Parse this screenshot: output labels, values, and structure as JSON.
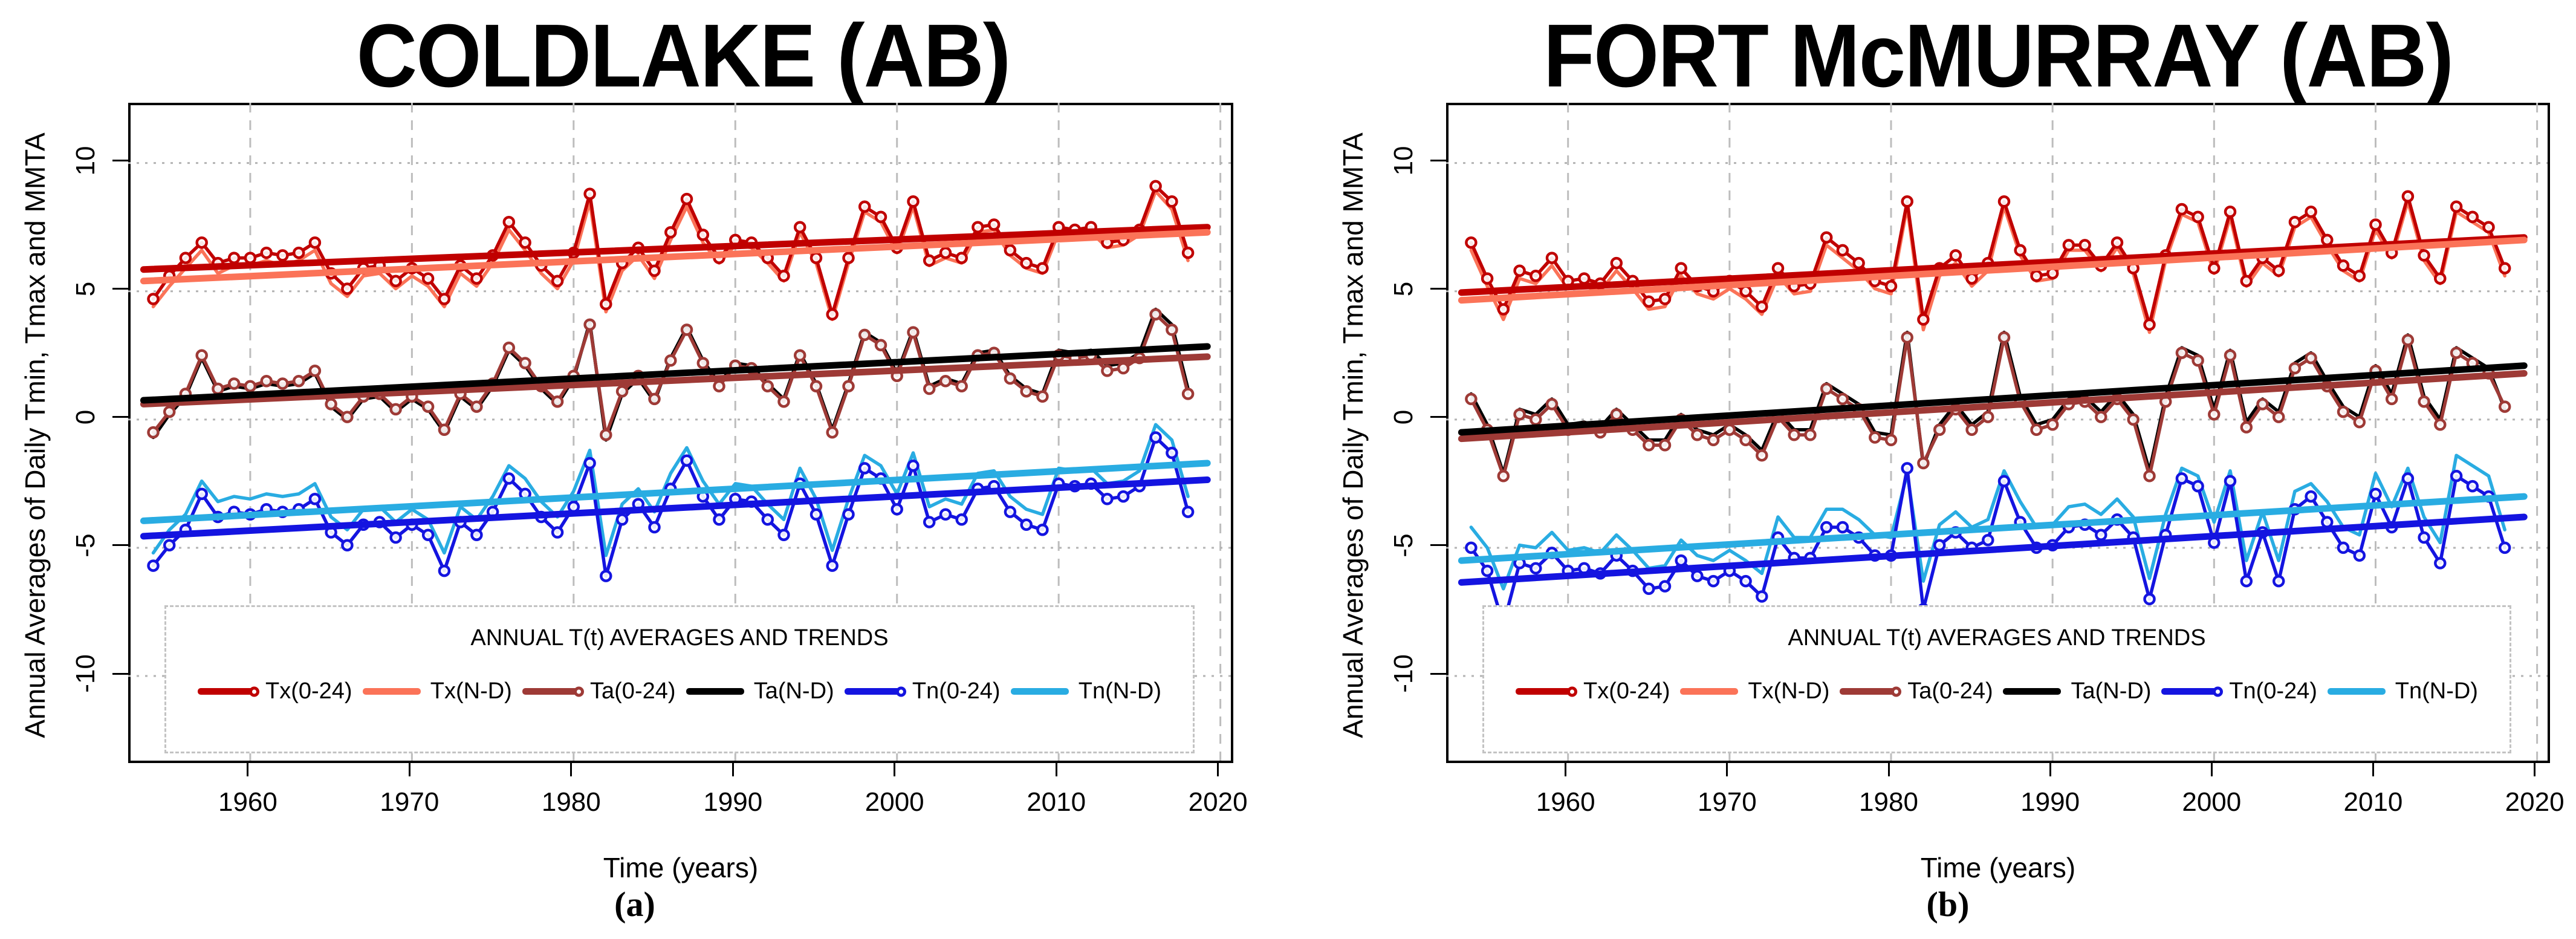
{
  "figure": {
    "ylabel": "Annual Averages of Daily Tmin, Tmax and MMTA",
    "xlabel": "Time (years)",
    "legend": {
      "title": "ANNUAL T(t) AVERAGES AND TRENDS",
      "items": [
        {
          "label": "Tx(0-24)",
          "color": "#C00000",
          "marker": true
        },
        {
          "label": "Tx(N-D)",
          "color": "#FB7358",
          "marker": false
        },
        {
          "label": "Ta(0-24)",
          "color": "#9E3A36",
          "marker": true
        },
        {
          "label": "Ta(N-D)",
          "color": "#000000",
          "marker": false
        },
        {
          "label": "Tn(0-24)",
          "color": "#1414E0",
          "marker": true
        },
        {
          "label": "Tn(N-D)",
          "color": "#29ACE2",
          "marker": false
        }
      ]
    },
    "grid_color_v": "#bdbdbd",
    "grid_color_h": "#b3b3b3"
  },
  "chart_data": [
    {
      "type": "line",
      "title": "COLDLAKE (AB)",
      "caption": "(a)",
      "xlabel": "Time (years)",
      "ylabel": "Annual Averages of Daily Tmin, Tmax and MMTA",
      "x_start": 1954,
      "xlim": [
        1952.45,
        2020.65
      ],
      "ylim": [
        -13.3,
        12.35
      ],
      "xticks": [
        1960,
        1970,
        1980,
        1990,
        2000,
        2010,
        2020
      ],
      "yticks": [
        -10,
        -5,
        0,
        5,
        10
      ],
      "grid": true,
      "legend_position": "bottom-center",
      "series": [
        {
          "name": "Tx(0-24)",
          "color": "#C00000",
          "marker": true,
          "values": [
            4.7,
            5.6,
            6.3,
            6.9,
            6.1,
            6.3,
            6.3,
            6.5,
            6.4,
            6.5,
            6.9,
            5.7,
            5.1,
            5.9,
            6.0,
            5.4,
            5.9,
            5.5,
            4.7,
            6.0,
            5.5,
            6.4,
            7.7,
            6.9,
            6.0,
            5.4,
            6.5,
            8.8,
            4.5,
            6.1,
            6.7,
            5.8,
            7.3,
            8.6,
            7.2,
            6.3,
            7.0,
            6.9,
            6.3,
            5.6,
            7.5,
            6.3,
            4.1,
            6.3,
            8.3,
            7.9,
            6.7,
            8.5,
            6.2,
            6.5,
            6.3,
            7.5,
            7.6,
            6.6,
            6.1,
            5.9,
            7.5,
            7.4,
            7.5,
            6.9,
            7.0,
            7.4,
            9.1,
            8.5,
            6.5
          ],
          "trend": [
            5.85,
            7.5
          ]
        },
        {
          "name": "Tx(N-D)",
          "color": "#FB7358",
          "marker": false,
          "values": [
            4.4,
            5.2,
            5.9,
            6.6,
            5.7,
            6.0,
            6.0,
            6.2,
            6.0,
            6.2,
            6.6,
            5.3,
            4.8,
            5.6,
            5.7,
            5.1,
            5.6,
            5.2,
            4.4,
            5.7,
            5.2,
            6.1,
            7.4,
            6.6,
            5.7,
            5.1,
            6.2,
            8.5,
            4.2,
            5.8,
            6.4,
            5.5,
            7.0,
            8.3,
            6.9,
            6.1,
            6.8,
            6.7,
            6.1,
            5.4,
            7.3,
            6.1,
            3.9,
            6.1,
            8.1,
            7.7,
            6.5,
            8.3,
            6.0,
            6.3,
            6.1,
            7.3,
            7.4,
            6.4,
            5.9,
            5.7,
            7.3,
            7.2,
            7.3,
            6.7,
            6.8,
            7.2,
            8.9,
            8.2,
            6.2
          ],
          "trend": [
            5.4,
            7.3
          ]
        },
        {
          "name": "Ta(0-24)",
          "color": "#9E3A36",
          "marker": true,
          "values": [
            -0.5,
            0.3,
            1.0,
            2.5,
            1.2,
            1.4,
            1.3,
            1.5,
            1.4,
            1.5,
            1.9,
            0.6,
            0.1,
            0.9,
            1.0,
            0.4,
            0.9,
            0.5,
            -0.4,
            1.0,
            0.5,
            1.4,
            2.8,
            2.2,
            1.3,
            0.7,
            1.7,
            3.7,
            -0.6,
            1.1,
            1.7,
            0.8,
            2.3,
            3.5,
            2.2,
            1.3,
            2.1,
            2.0,
            1.3,
            0.7,
            2.5,
            1.3,
            -0.5,
            1.3,
            3.3,
            2.9,
            1.7,
            3.4,
            1.2,
            1.5,
            1.3,
            2.5,
            2.6,
            1.6,
            1.1,
            0.9,
            2.5,
            2.4,
            2.5,
            1.9,
            2.0,
            2.4,
            4.1,
            3.5,
            1.0
          ],
          "trend": [
            0.6,
            2.45
          ]
        },
        {
          "name": "Ta(N-D)",
          "color": "#000000",
          "marker": false,
          "values": [
            -0.7,
            0.2,
            0.9,
            2.4,
            1.1,
            1.3,
            1.2,
            1.4,
            1.3,
            1.4,
            1.8,
            0.5,
            0.0,
            0.8,
            0.9,
            0.3,
            0.8,
            0.4,
            -0.5,
            0.9,
            0.4,
            1.3,
            2.7,
            2.1,
            1.2,
            0.6,
            1.6,
            3.8,
            -0.8,
            1.0,
            1.6,
            0.7,
            2.4,
            3.6,
            2.3,
            1.4,
            2.2,
            2.1,
            1.4,
            0.8,
            2.6,
            1.4,
            -0.4,
            1.4,
            3.4,
            3.0,
            1.8,
            3.5,
            1.3,
            1.6,
            1.4,
            2.6,
            2.7,
            1.7,
            1.2,
            1.0,
            2.7,
            2.6,
            2.7,
            2.1,
            2.2,
            2.6,
            4.3,
            3.7,
            1.2
          ],
          "trend": [
            0.75,
            2.85
          ]
        },
        {
          "name": "Tn(0-24)",
          "color": "#1414E0",
          "marker": true,
          "values": [
            -5.7,
            -4.9,
            -4.3,
            -2.9,
            -3.8,
            -3.6,
            -3.7,
            -3.5,
            -3.6,
            -3.5,
            -3.1,
            -4.4,
            -4.9,
            -4.1,
            -4.0,
            -4.6,
            -4.1,
            -4.5,
            -5.9,
            -4.0,
            -4.5,
            -3.6,
            -2.3,
            -2.9,
            -3.8,
            -4.4,
            -3.4,
            -1.7,
            -6.1,
            -3.9,
            -3.3,
            -4.2,
            -2.7,
            -1.6,
            -3.0,
            -3.9,
            -3.1,
            -3.2,
            -3.9,
            -4.5,
            -2.5,
            -3.7,
            -5.7,
            -3.7,
            -1.9,
            -2.3,
            -3.5,
            -1.8,
            -4.0,
            -3.7,
            -3.9,
            -2.7,
            -2.6,
            -3.6,
            -4.1,
            -4.3,
            -2.5,
            -2.6,
            -2.5,
            -3.1,
            -3.0,
            -2.6,
            -0.7,
            -1.3,
            -3.6
          ],
          "trend": [
            -4.55,
            -2.35
          ]
        },
        {
          "name": "Tn(N-D)",
          "color": "#29ACE2",
          "marker": false,
          "values": [
            -5.2,
            -4.3,
            -3.7,
            -2.4,
            -3.2,
            -3.0,
            -3.1,
            -2.9,
            -3.0,
            -2.9,
            -2.5,
            -3.8,
            -4.3,
            -3.5,
            -3.4,
            -4.0,
            -3.5,
            -3.9,
            -5.2,
            -3.4,
            -3.9,
            -3.0,
            -1.8,
            -2.3,
            -3.2,
            -3.8,
            -2.8,
            -1.2,
            -5.3,
            -3.3,
            -2.7,
            -3.6,
            -2.1,
            -1.1,
            -2.4,
            -3.3,
            -2.5,
            -2.6,
            -3.3,
            -3.9,
            -1.9,
            -3.1,
            -5.1,
            -3.1,
            -1.4,
            -1.8,
            -2.9,
            -1.3,
            -3.4,
            -3.1,
            -3.3,
            -2.1,
            -2.0,
            -3.0,
            -3.5,
            -3.7,
            -1.9,
            -2.0,
            -1.9,
            -2.5,
            -2.4,
            -2.0,
            -0.2,
            -0.8,
            -3.0
          ],
          "trend": [
            -3.95,
            -1.7
          ]
        }
      ]
    },
    {
      "type": "line",
      "title": "FORT McMURRAY (AB)",
      "caption": "(b)",
      "xlabel": "Time (years)",
      "ylabel": "Annual Averages of Daily Tmin, Tmax and MMTA",
      "x_start": 1954,
      "xlim": [
        1952.45,
        2020.65
      ],
      "ylim": [
        -13.3,
        12.35
      ],
      "xticks": [
        1960,
        1970,
        1980,
        1990,
        2000,
        2010,
        2020
      ],
      "yticks": [
        -10,
        -5,
        0,
        5,
        10
      ],
      "grid": true,
      "legend_position": "bottom-center",
      "series": [
        {
          "name": "Tx(0-24)",
          "color": "#C00000",
          "marker": true,
          "values": [
            6.9,
            5.5,
            4.3,
            5.8,
            5.6,
            6.3,
            5.4,
            5.5,
            5.3,
            6.1,
            5.4,
            4.6,
            4.7,
            5.9,
            5.2,
            5.0,
            5.4,
            5.0,
            4.4,
            5.9,
            5.2,
            5.3,
            7.1,
            6.6,
            6.1,
            5.4,
            5.2,
            8.5,
            3.9,
            5.9,
            6.4,
            5.5,
            6.1,
            8.5,
            6.6,
            5.6,
            5.7,
            6.8,
            6.8,
            6.0,
            6.9,
            5.9,
            3.7,
            6.4,
            8.2,
            7.9,
            5.9,
            8.1,
            5.4,
            6.3,
            5.8,
            7.7,
            8.1,
            7.0,
            6.0,
            5.6,
            7.6,
            6.5,
            8.7,
            6.4,
            5.5,
            8.3,
            7.9,
            7.5,
            5.9
          ],
          "trend": [
            4.95,
            7.1
          ]
        },
        {
          "name": "Tx(N-D)",
          "color": "#FB7358",
          "marker": false,
          "values": [
            6.6,
            5.2,
            3.9,
            5.5,
            5.3,
            6.0,
            5.1,
            5.2,
            5.0,
            5.8,
            5.1,
            4.3,
            4.4,
            5.6,
            4.9,
            4.7,
            5.1,
            4.7,
            4.1,
            5.6,
            4.9,
            5.0,
            6.8,
            6.3,
            5.8,
            5.1,
            4.9,
            8.3,
            3.5,
            5.6,
            6.1,
            5.2,
            5.8,
            8.3,
            6.4,
            5.4,
            5.5,
            6.6,
            6.6,
            5.8,
            6.7,
            5.7,
            3.4,
            6.2,
            8.0,
            7.7,
            5.7,
            7.9,
            5.2,
            6.1,
            5.6,
            7.5,
            7.9,
            6.8,
            5.8,
            5.4,
            7.4,
            6.3,
            8.5,
            6.2,
            5.3,
            8.1,
            7.7,
            7.3,
            5.6
          ],
          "trend": [
            4.65,
            7.0
          ]
        },
        {
          "name": "Ta(0-24)",
          "color": "#9E3A36",
          "marker": true,
          "values": [
            0.8,
            -0.4,
            -2.2,
            0.2,
            0.0,
            0.6,
            -0.4,
            -0.3,
            -0.5,
            0.2,
            -0.4,
            -1.0,
            -1.0,
            0.0,
            -0.6,
            -0.8,
            -0.4,
            -0.8,
            -1.4,
            0.1,
            -0.6,
            -0.6,
            1.2,
            0.8,
            0.4,
            -0.7,
            -0.8,
            3.2,
            -1.7,
            -0.4,
            0.4,
            -0.4,
            0.1,
            3.2,
            0.7,
            -0.4,
            -0.2,
            0.6,
            0.7,
            0.1,
            0.8,
            0.0,
            -2.2,
            0.7,
            2.6,
            2.3,
            0.2,
            2.5,
            -0.3,
            0.6,
            0.1,
            2.0,
            2.4,
            1.3,
            0.3,
            -0.1,
            1.9,
            0.8,
            3.1,
            0.7,
            -0.2,
            2.6,
            2.2,
            1.8,
            0.5
          ],
          "trend": [
            -0.75,
            1.8
          ]
        },
        {
          "name": "Ta(N-D)",
          "color": "#000000",
          "marker": false,
          "values": [
            1.0,
            -0.2,
            -2.1,
            0.4,
            0.2,
            0.8,
            -0.2,
            -0.1,
            -0.3,
            0.4,
            -0.2,
            -0.8,
            -0.8,
            0.2,
            -0.4,
            -0.6,
            -0.2,
            -0.6,
            -1.2,
            0.3,
            -0.4,
            -0.4,
            1.4,
            1.0,
            0.6,
            -0.5,
            -0.6,
            3.4,
            -1.8,
            -0.2,
            0.6,
            -0.2,
            0.3,
            3.4,
            0.9,
            -0.2,
            0.0,
            0.8,
            0.9,
            0.3,
            1.0,
            0.2,
            -2.0,
            0.9,
            2.8,
            2.5,
            0.4,
            2.7,
            -0.1,
            0.8,
            0.3,
            2.2,
            2.6,
            1.5,
            0.5,
            0.1,
            2.1,
            1.0,
            3.3,
            0.9,
            0.0,
            2.8,
            2.4,
            2.0,
            0.4
          ],
          "trend": [
            -0.5,
            2.1
          ]
        },
        {
          "name": "Tn(0-24)",
          "color": "#1414E0",
          "marker": true,
          "values": [
            -5.0,
            -5.9,
            -8.0,
            -5.6,
            -5.8,
            -5.2,
            -5.9,
            -5.8,
            -6.0,
            -5.3,
            -5.9,
            -6.6,
            -6.5,
            -5.5,
            -6.1,
            -6.3,
            -5.9,
            -6.3,
            -6.9,
            -4.6,
            -5.4,
            -5.4,
            -4.2,
            -4.2,
            -4.6,
            -5.3,
            -5.3,
            -1.9,
            -7.4,
            -4.9,
            -4.4,
            -5.0,
            -4.7,
            -2.4,
            -4.0,
            -5.0,
            -4.9,
            -4.2,
            -4.1,
            -4.5,
            -3.9,
            -4.6,
            -7.0,
            -4.5,
            -2.3,
            -2.6,
            -4.8,
            -2.4,
            -6.3,
            -4.4,
            -6.3,
            -3.5,
            -3.0,
            -4.0,
            -5.0,
            -5.3,
            -2.9,
            -4.2,
            -2.3,
            -4.6,
            -5.6,
            -2.2,
            -2.6,
            -3.0,
            -5.0
          ],
          "trend": [
            -6.35,
            -3.8
          ]
        },
        {
          "name": "Tn(N-D)",
          "color": "#29ACE2",
          "marker": false,
          "values": [
            -4.2,
            -5.0,
            -6.6,
            -4.9,
            -5.0,
            -4.4,
            -5.1,
            -5.0,
            -5.2,
            -4.5,
            -5.1,
            -5.8,
            -5.7,
            -4.7,
            -5.3,
            -5.5,
            -5.1,
            -5.5,
            -6.0,
            -3.8,
            -4.6,
            -4.6,
            -3.5,
            -3.5,
            -3.9,
            -4.5,
            -4.6,
            -2.1,
            -6.3,
            -4.1,
            -3.6,
            -4.2,
            -3.9,
            -2.0,
            -3.2,
            -4.2,
            -4.1,
            -3.4,
            -3.3,
            -3.7,
            -3.1,
            -3.8,
            -6.2,
            -3.7,
            -1.9,
            -2.2,
            -4.0,
            -2.0,
            -5.5,
            -3.6,
            -5.5,
            -2.8,
            -2.5,
            -3.2,
            -4.2,
            -4.5,
            -2.1,
            -3.4,
            -1.9,
            -3.8,
            -4.8,
            -1.4,
            -1.8,
            -2.2,
            -4.3
          ],
          "trend": [
            -5.5,
            -3.0
          ]
        }
      ]
    }
  ]
}
